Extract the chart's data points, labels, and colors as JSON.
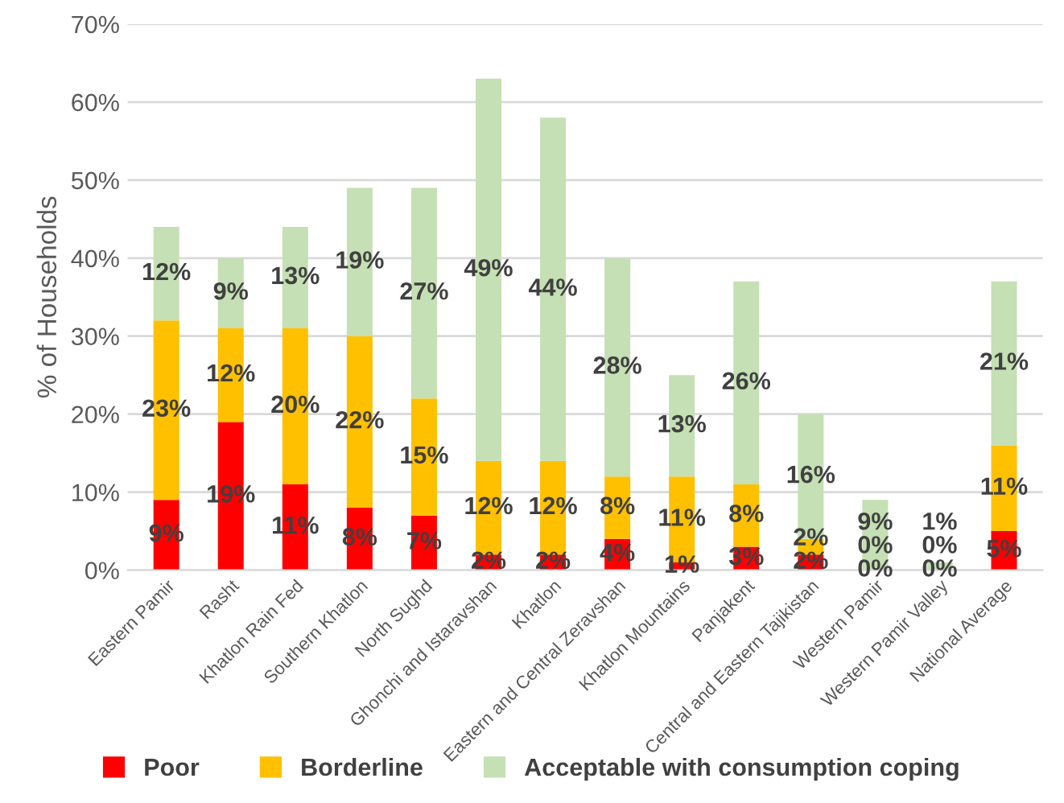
{
  "chart_data": {
    "type": "bar",
    "stacked": true,
    "ylabel": "% of Households",
    "categories": [
      "Eastern Pamir",
      "Rasht",
      "Khatlon Rain Fed",
      "Southern Khatlon",
      "North Sughd",
      "Ghonchi and Istaravshan",
      "Khatlon",
      "Eastern and Central Zeravshan",
      "Khatlon Mountains",
      "Panjakent",
      "Central and Eastern Tajikistan",
      "Western Pamir",
      "Western Pamir Valley",
      "National Average"
    ],
    "series": [
      {
        "name": "Poor",
        "color": "#ff0000",
        "values": [
          9,
          19,
          11,
          8,
          7,
          2,
          2,
          4,
          1,
          3,
          2,
          0,
          0,
          5
        ],
        "value_labels": [
          "9%",
          "19%",
          "11%",
          "8%",
          "7%",
          "2%",
          "2%",
          "4%",
          "1%",
          "3%",
          "2%",
          "0%",
          "0%",
          "5%"
        ]
      },
      {
        "name": "Borderline",
        "color": "#ffc000",
        "values": [
          23,
          12,
          20,
          22,
          15,
          12,
          12,
          8,
          11,
          8,
          2,
          0,
          0,
          11
        ],
        "value_labels": [
          "23%",
          "12%",
          "20%",
          "22%",
          "15%",
          "12%",
          "12%",
          "8%",
          "11%",
          "8%",
          "2%",
          "0%",
          "0%",
          "11%"
        ]
      },
      {
        "name": "Acceptable with consumption coping",
        "color": "#c5e0b4",
        "values": [
          12,
          9,
          13,
          19,
          27,
          49,
          44,
          28,
          13,
          26,
          16,
          9,
          1,
          21
        ],
        "value_labels": [
          "12%",
          "9%",
          "13%",
          "19%",
          "27%",
          "49%",
          "44%",
          "28%",
          "13%",
          "26%",
          "16%",
          "9%",
          "1%",
          "21%"
        ]
      }
    ],
    "ylim": [
      0,
      70
    ],
    "yticks": [
      {
        "value": 0,
        "label": "0%"
      },
      {
        "value": 10,
        "label": "10%"
      },
      {
        "value": 20,
        "label": "20%"
      },
      {
        "value": 30,
        "label": "30%"
      },
      {
        "value": 40,
        "label": "40%"
      },
      {
        "value": 50,
        "label": "50%"
      },
      {
        "value": 60,
        "label": "60%"
      },
      {
        "value": 70,
        "label": "70%"
      }
    ],
    "grid": "y",
    "legend": "bottom"
  }
}
